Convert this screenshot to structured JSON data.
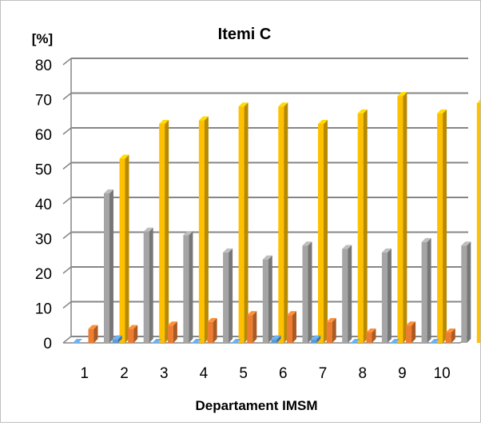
{
  "chart_data": {
    "type": "bar",
    "style": "3d-clustered-column",
    "title": "Itemi C",
    "ylabel": "[%]",
    "xlabel": "Departament IMSM",
    "ylim": [
      0,
      80
    ],
    "yticks": [
      "0",
      "10",
      "20",
      "30",
      "40",
      "50",
      "60",
      "70",
      "80"
    ],
    "categories": [
      "1",
      "2",
      "3",
      "4",
      "5",
      "6",
      "7",
      "8",
      "9",
      "10"
    ],
    "grid": true,
    "legend": "none",
    "series": [
      {
        "color": "#5B9BD5",
        "values": [
          0,
          1,
          0,
          0,
          0,
          1,
          1,
          0,
          0,
          0
        ]
      },
      {
        "color": "#ED7D31",
        "values": [
          4,
          4,
          5,
          6,
          8,
          8,
          6,
          3,
          5,
          3
        ]
      },
      {
        "color": "#A5A5A5",
        "values": [
          43,
          32,
          31,
          26,
          24,
          28,
          27,
          26,
          29,
          28
        ]
      },
      {
        "color": "#FFC000",
        "values": [
          53,
          63,
          64,
          68,
          68,
          63,
          66,
          71,
          66,
          69
        ]
      }
    ]
  }
}
